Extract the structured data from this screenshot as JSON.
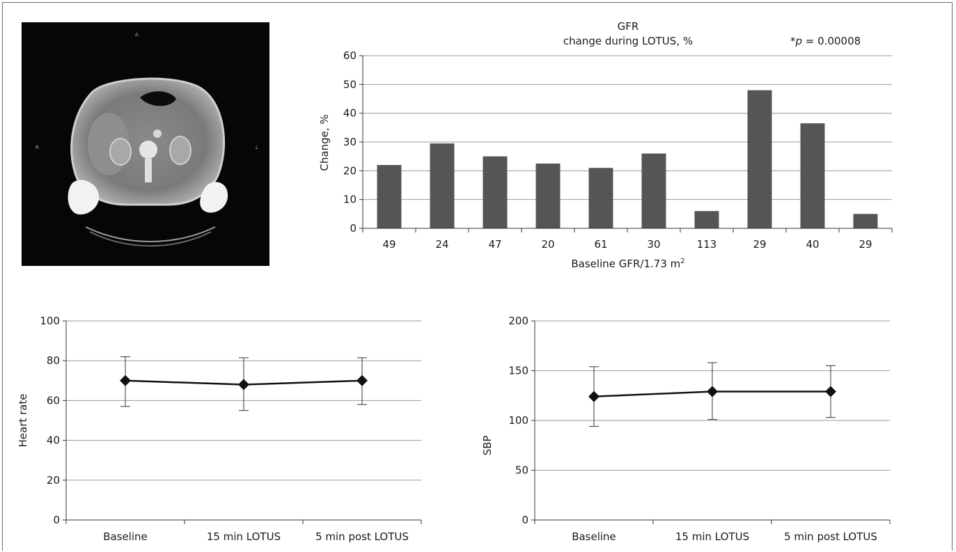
{
  "figure": {
    "ct_image": {
      "orientation_labels": [
        "A",
        "R",
        "L"
      ]
    }
  },
  "chart_data": [
    {
      "type": "bar",
      "title": "GFR",
      "subtitle": "change during LOTUS, %",
      "annotation_prefix": "*",
      "annotation_p": "p",
      "annotation_value": " = 0.00008",
      "xlabel": "Baseline GFR/1.73 m",
      "xlabel_sup": "2",
      "ylabel": "Change, %",
      "categories": [
        "49",
        "24",
        "47",
        "20",
        "61",
        "30",
        "113",
        "29",
        "40",
        "29"
      ],
      "values": [
        22,
        29.5,
        25,
        22.5,
        21,
        26,
        6,
        48,
        36.5,
        5
      ],
      "ylim": [
        0,
        60
      ],
      "yticks": [
        0,
        10,
        20,
        30,
        40,
        50,
        60
      ],
      "grid": true,
      "bar_color": "#555555"
    },
    {
      "type": "line",
      "ylabel": "Heart rate",
      "categories": [
        "Baseline",
        "15 min LOTUS",
        "5 min post LOTUS"
      ],
      "values": [
        70,
        68,
        70
      ],
      "error_low": [
        57,
        55,
        58
      ],
      "error_high": [
        82,
        81.5,
        81.5
      ],
      "ylim": [
        0,
        100
      ],
      "yticks": [
        0,
        20,
        40,
        60,
        80,
        100
      ],
      "grid": true
    },
    {
      "type": "line",
      "ylabel": "SBP",
      "categories": [
        "Baseline",
        "15 min LOTUS",
        "5 min post LOTUS"
      ],
      "values": [
        124,
        129,
        129
      ],
      "error_low": [
        94,
        101,
        103
      ],
      "error_high": [
        154,
        158,
        155
      ],
      "ylim": [
        0,
        200
      ],
      "yticks": [
        0,
        50,
        100,
        150,
        200
      ],
      "grid": true
    }
  ]
}
